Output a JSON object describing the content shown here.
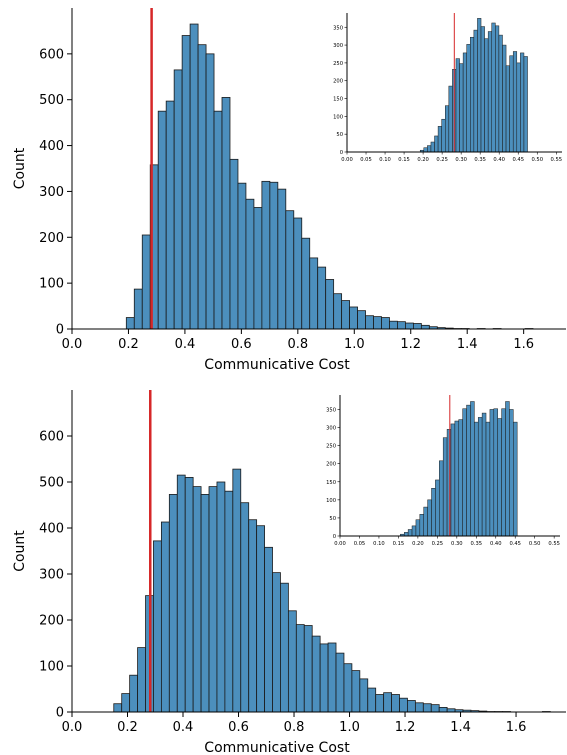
{
  "chart_data": [
    {
      "type": "bar",
      "panel": "top",
      "xlabel": "Communicative Cost",
      "ylabel": "Count",
      "xlim": [
        0.0,
        1.75
      ],
      "ylim": [
        0,
        700
      ],
      "xticks": [
        "0.0",
        "0.2",
        "0.4",
        "0.6",
        "0.8",
        "1.0",
        "1.2",
        "1.4",
        "1.6"
      ],
      "yticks": [
        "0",
        "100",
        "200",
        "300",
        "400",
        "500",
        "600"
      ],
      "bin_start": 0.1924,
      "bin_width": 0.02825,
      "counts": [
        25,
        87,
        205,
        358,
        475,
        497,
        565,
        640,
        665,
        620,
        600,
        475,
        505,
        370,
        318,
        283,
        265,
        322,
        320,
        305,
        258,
        242,
        198,
        155,
        135,
        108,
        77,
        62,
        48,
        40,
        29,
        27,
        25,
        17,
        16,
        13,
        12,
        8,
        5,
        3,
        2,
        1,
        1,
        0,
        1,
        0,
        1,
        0,
        0,
        0,
        1
      ],
      "reference_line_x": 0.282,
      "inset": {
        "xlim": [
          0.0,
          0.565
        ],
        "ylim": [
          0,
          390
        ],
        "xticks": [
          "0.00",
          "0.05",
          "0.10",
          "0.15",
          "0.20",
          "0.25",
          "0.30",
          "0.35",
          "0.40",
          "0.45",
          "0.50",
          "0.55"
        ],
        "yticks": [
          "0",
          "50",
          "100",
          "150",
          "200",
          "250",
          "300",
          "350"
        ],
        "bin_start": 0.1924,
        "bin_width": 0.0094,
        "counts": [
          5,
          12,
          18,
          28,
          45,
          72,
          92,
          130,
          185,
          232,
          262,
          248,
          278,
          302,
          322,
          342,
          375,
          352,
          318,
          338,
          362,
          354,
          328,
          300,
          242,
          270,
          282,
          250,
          278,
          268
        ],
        "reference_line_x": 0.282
      }
    },
    {
      "type": "bar",
      "panel": "bottom",
      "xlabel": "Communicative Cost",
      "ylabel": "Count",
      "xlim": [
        0.0,
        1.78
      ],
      "ylim": [
        0,
        700
      ],
      "xticks": [
        "0.0",
        "0.2",
        "0.4",
        "0.6",
        "0.8",
        "1.0",
        "1.2",
        "1.4",
        "1.6"
      ],
      "yticks": [
        "0",
        "100",
        "200",
        "300",
        "400",
        "500",
        "600"
      ],
      "bin_start": 0.1505,
      "bin_width": 0.0286,
      "counts": [
        18,
        40,
        80,
        140,
        253,
        372,
        413,
        473,
        515,
        510,
        490,
        473,
        490,
        500,
        480,
        528,
        455,
        418,
        405,
        358,
        303,
        280,
        220,
        190,
        188,
        165,
        148,
        150,
        128,
        105,
        90,
        72,
        52,
        38,
        42,
        38,
        30,
        25,
        20,
        18,
        16,
        10,
        7,
        5,
        4,
        3,
        2,
        1,
        1,
        1,
        0,
        0,
        0,
        0,
        1
      ],
      "reference_line_x": 0.282,
      "inset": {
        "xlim": [
          0.0,
          0.565
        ],
        "ylim": [
          0,
          390
        ],
        "xticks": [
          "0.00",
          "0.05",
          "0.10",
          "0.15",
          "0.20",
          "0.25",
          "0.30",
          "0.35",
          "0.40",
          "0.45",
          "0.50",
          "0.55"
        ],
        "yticks": [
          "0",
          "50",
          "100",
          "150",
          "200",
          "250",
          "300",
          "350"
        ],
        "bin_start": 0.155,
        "bin_width": 0.01,
        "counts": [
          5,
          10,
          18,
          28,
          45,
          60,
          80,
          100,
          132,
          155,
          208,
          272,
          295,
          310,
          318,
          322,
          352,
          362,
          372,
          315,
          328,
          340,
          315,
          350,
          352,
          325,
          352,
          372,
          350,
          315
        ],
        "reference_line_x": 0.282
      }
    }
  ]
}
